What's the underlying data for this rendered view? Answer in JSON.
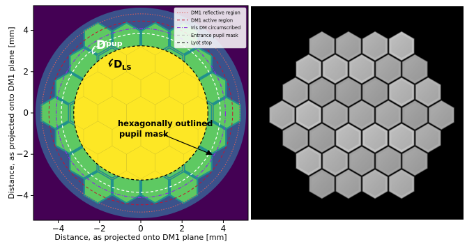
{
  "chart_data": [
    {
      "type": "image-plot",
      "xlabel": "Distance, as projected onto DM1 plane [mm]",
      "ylabel": "Distance, as projected onto DM1 plane [mm]",
      "xlim": [
        -5.2,
        5.2
      ],
      "ylim": [
        -5.2,
        5.2
      ],
      "xticks": [
        -4,
        -2,
        0,
        2,
        4
      ],
      "yticks": [
        -4,
        -2,
        0,
        2,
        4
      ],
      "xtick_labels": [
        "−4",
        "−2",
        "0",
        "2",
        "4"
      ],
      "ytick_labels": [
        "−4",
        "−2",
        "0",
        "2",
        "4"
      ],
      "legend_position": "top-right",
      "legend": [
        {
          "label": "DM1 reflective region",
          "color": "#e0605a",
          "dash": "dotted"
        },
        {
          "label": "DM1 active region",
          "color": "#c8102e",
          "dash": "dashed"
        },
        {
          "label": "Iris DM circumscribed",
          "color": "#8a2be2",
          "dash": "dashdot"
        },
        {
          "label": "Entrance pupil mask",
          "color": "#ffffff",
          "dash": "dashed"
        },
        {
          "label": "Lyot stop",
          "color": "#000000",
          "dash": "dashed"
        }
      ],
      "circles_mm": {
        "dm1_reflective_radius": 4.8,
        "dm1_active_radius": 4.45,
        "iris_circumscribed_radius": 4.1,
        "entrance_pupil_radius": 3.85,
        "lyot_stop_radius": 3.25
      },
      "annotations": {
        "d_pup": "D",
        "d_pup_sub": "pup",
        "d_ls": "D",
        "d_ls_sub": "LS",
        "mask_label_line1": "hexagonally outlined",
        "mask_label_line2": "pupil mask"
      },
      "colors": {
        "background_outer": "#440154",
        "field": "#3b528b",
        "hex_mask": "#5ec962",
        "hex_edge": "#21918c",
        "pupil": "#fde725"
      }
    },
    {
      "type": "photo",
      "description_name": "segmented-hexagonal-mirror-photo",
      "hex_count": 37,
      "rings": 3
    }
  ]
}
